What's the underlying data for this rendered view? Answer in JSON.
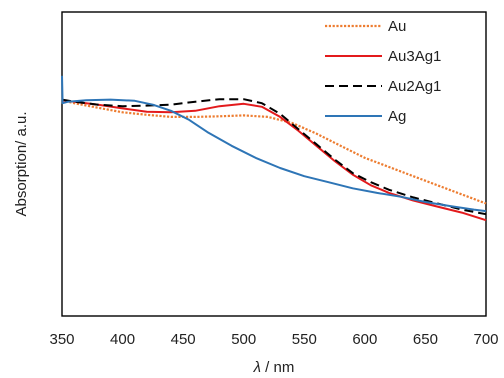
{
  "chart_data": {
    "type": "line",
    "xlabel_prefix": "λ",
    "xlabel_suffix": " / nm",
    "ylabel": "Absorption/ a.u.",
    "xlim": [
      350,
      700
    ],
    "ylim": [
      0,
      1
    ],
    "x_ticks": [
      350,
      400,
      450,
      500,
      550,
      600,
      650,
      700
    ],
    "y_ticks_shown": false,
    "grid": false,
    "legend_position": "top-right",
    "series": [
      {
        "name": "Au",
        "color": "#ED7D31",
        "dash": "dotted",
        "points": [
          [
            350,
            0.71
          ],
          [
            360,
            0.7
          ],
          [
            380,
            0.685
          ],
          [
            400,
            0.67
          ],
          [
            420,
            0.662
          ],
          [
            440,
            0.655
          ],
          [
            460,
            0.655
          ],
          [
            480,
            0.657
          ],
          [
            500,
            0.66
          ],
          [
            520,
            0.655
          ],
          [
            540,
            0.635
          ],
          [
            560,
            0.6
          ],
          [
            580,
            0.56
          ],
          [
            600,
            0.52
          ],
          [
            620,
            0.49
          ],
          [
            640,
            0.46
          ],
          [
            660,
            0.43
          ],
          [
            680,
            0.4
          ],
          [
            700,
            0.37
          ]
        ]
      },
      {
        "name": "Au3Ag1",
        "color": "#E31A1C",
        "dash": "solid",
        "points": [
          [
            350,
            0.71
          ],
          [
            360,
            0.705
          ],
          [
            380,
            0.695
          ],
          [
            400,
            0.683
          ],
          [
            420,
            0.672
          ],
          [
            440,
            0.67
          ],
          [
            460,
            0.675
          ],
          [
            480,
            0.69
          ],
          [
            500,
            0.698
          ],
          [
            515,
            0.688
          ],
          [
            530,
            0.655
          ],
          [
            545,
            0.61
          ],
          [
            560,
            0.56
          ],
          [
            575,
            0.51
          ],
          [
            590,
            0.465
          ],
          [
            605,
            0.43
          ],
          [
            620,
            0.405
          ],
          [
            640,
            0.38
          ],
          [
            660,
            0.36
          ],
          [
            680,
            0.34
          ],
          [
            700,
            0.315
          ]
        ]
      },
      {
        "name": "Au2Ag1",
        "color": "#000000",
        "dash": "dashed",
        "points": [
          [
            350,
            0.712
          ],
          [
            360,
            0.705
          ],
          [
            380,
            0.695
          ],
          [
            400,
            0.69
          ],
          [
            420,
            0.692
          ],
          [
            440,
            0.695
          ],
          [
            460,
            0.705
          ],
          [
            480,
            0.713
          ],
          [
            500,
            0.713
          ],
          [
            515,
            0.7
          ],
          [
            530,
            0.665
          ],
          [
            545,
            0.615
          ],
          [
            560,
            0.565
          ],
          [
            575,
            0.515
          ],
          [
            590,
            0.47
          ],
          [
            605,
            0.44
          ],
          [
            620,
            0.415
          ],
          [
            640,
            0.39
          ],
          [
            660,
            0.37
          ],
          [
            680,
            0.35
          ],
          [
            700,
            0.335
          ]
        ]
      },
      {
        "name": "Ag",
        "color": "#2E75B6",
        "dash": "solid",
        "points": [
          [
            350,
            0.79
          ],
          [
            350.5,
            0.7
          ],
          [
            355,
            0.705
          ],
          [
            370,
            0.71
          ],
          [
            390,
            0.712
          ],
          [
            410,
            0.708
          ],
          [
            425,
            0.695
          ],
          [
            440,
            0.675
          ],
          [
            455,
            0.645
          ],
          [
            470,
            0.605
          ],
          [
            490,
            0.56
          ],
          [
            510,
            0.52
          ],
          [
            530,
            0.487
          ],
          [
            550,
            0.46
          ],
          [
            570,
            0.44
          ],
          [
            590,
            0.42
          ],
          [
            610,
            0.405
          ],
          [
            630,
            0.392
          ],
          [
            650,
            0.375
          ],
          [
            670,
            0.362
          ],
          [
            690,
            0.35
          ],
          [
            700,
            0.345
          ]
        ]
      }
    ]
  }
}
